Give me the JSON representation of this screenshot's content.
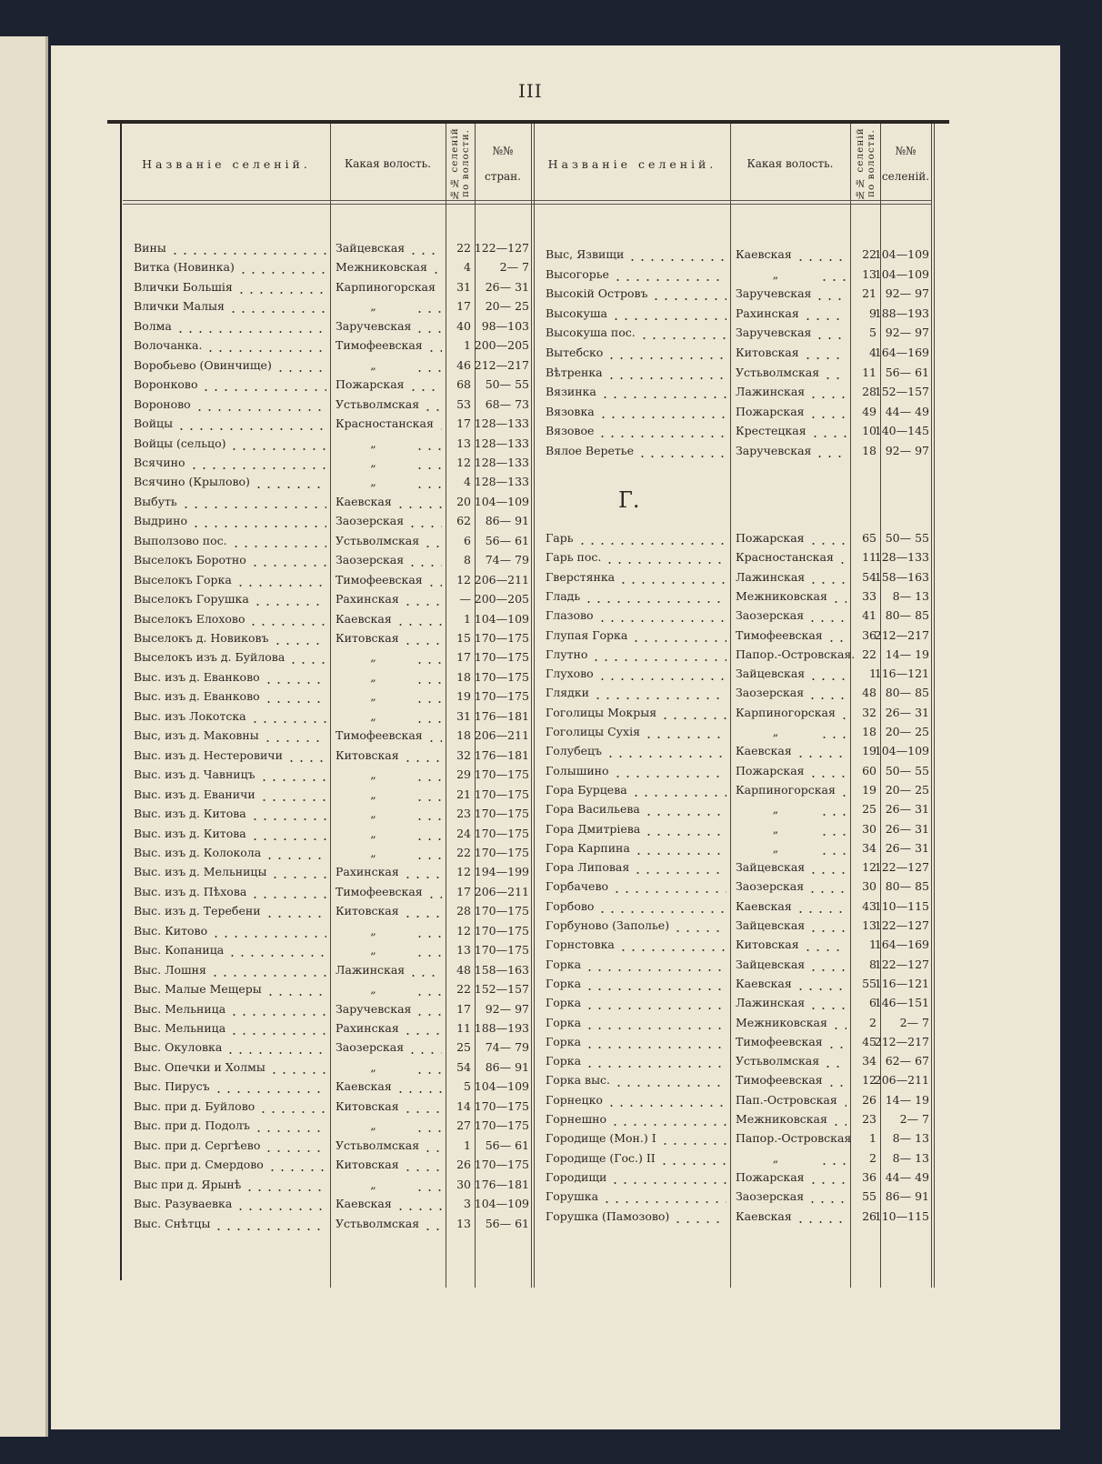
{
  "page_number": "III",
  "headers": {
    "name": "Названіе селеній.",
    "volost": "Какая волость.",
    "num_in_volost": "№№ селеній по волости.",
    "pages_left": "№№ стран.",
    "pages_right": "№№ селеній."
  },
  "section_letter": "Г.",
  "left_rows": [
    [
      "Вины",
      "Зайцевская",
      "22",
      "122—127"
    ],
    [
      "Витка (Новинка)",
      "Межниковская",
      "4",
      "2— 7"
    ],
    [
      "Влички Большія",
      "Карпиногорская",
      "31",
      "26— 31"
    ],
    [
      "Влички Малыя",
      "„",
      "17",
      "20— 25"
    ],
    [
      "Волма",
      "Заручевская",
      "40",
      "98—103"
    ],
    [
      "Волочанка.",
      "Тимофеевская",
      "1",
      "200—205"
    ],
    [
      "Воробьево (Овинчище)",
      "„",
      "46",
      "212—217"
    ],
    [
      "Воронково",
      "Пожарская",
      "68",
      "50— 55"
    ],
    [
      "Вороново",
      "Устьволмская",
      "53",
      "68— 73"
    ],
    [
      "Войцы",
      "Красностанская",
      "17",
      "128—133"
    ],
    [
      "Войцы (сельцо)",
      "„",
      "13",
      "128—133"
    ],
    [
      "Всячино",
      "„",
      "12",
      "128—133"
    ],
    [
      "Всячино (Крылово)",
      "„",
      "4",
      "128—133"
    ],
    [
      "Выбуть",
      "Каевская",
      "20",
      "104—109"
    ],
    [
      "Выдрино",
      "Заозерская",
      "62",
      "86— 91"
    ],
    [
      "Выползово пос.",
      "Устьволмская",
      "6",
      "56— 61"
    ],
    [
      "Выселокъ Боротно",
      "Заозерская",
      "8",
      "74— 79"
    ],
    [
      "Выселокъ Горка",
      "Тимофеевская",
      "12",
      "206—211"
    ],
    [
      "Выселокъ Горушка",
      "Рахинская",
      "—",
      "200—205"
    ],
    [
      "Выселокъ Елохово",
      "Каевская",
      "1",
      "104—109"
    ],
    [
      "Выселокъ д. Новиковъ",
      "Китовская",
      "15",
      "170—175"
    ],
    [
      "Выселокъ изъ д. Буйлова",
      "„",
      "17",
      "170—175"
    ],
    [
      "Выс. изъ д. Еванково",
      "„",
      "18",
      "170—175"
    ],
    [
      "Выс. изъ д. Еванково",
      "„",
      "19",
      "170—175"
    ],
    [
      "Выс. изъ Локотска",
      "„",
      "31",
      "176—181"
    ],
    [
      "Выс, изъ д. Маковны",
      "Тимофеевская",
      "18",
      "206—211"
    ],
    [
      "Выс. изъ д. Нестеровичи",
      "Китовская",
      "32",
      "176—181"
    ],
    [
      "Выс. изъ д. Чавницъ",
      "„",
      "29",
      "170—175"
    ],
    [
      "Выс. изъ д. Еваничи",
      "„",
      "21",
      "170—175"
    ],
    [
      "Выс. изъ д. Китова",
      "„",
      "23",
      "170—175"
    ],
    [
      "Выс. изъ д. Китова",
      "„",
      "24",
      "170—175"
    ],
    [
      "Выс. изъ д. Колокола",
      "„",
      "22",
      "170—175"
    ],
    [
      "Выс. изъ д. Мельницы",
      "Рахинская",
      "12",
      "194—199"
    ],
    [
      "Выс. изъ д. Пѣхова",
      "Тимофеевская",
      "17",
      "206—211"
    ],
    [
      "Выс. изъ д. Теребени",
      "Китовская",
      "28",
      "170—175"
    ],
    [
      "Выс. Китово",
      "„",
      "12",
      "170—175"
    ],
    [
      "Выс. Копаница",
      "„",
      "13",
      "170—175"
    ],
    [
      "Выс. Лошня",
      "Лажинская",
      "48",
      "158—163"
    ],
    [
      "Выс. Малые Мещеры",
      "„",
      "22",
      "152—157"
    ],
    [
      "Выс. Мельница",
      "Заручевская",
      "17",
      "92— 97"
    ],
    [
      "Выс. Мельница",
      "Рахинская",
      "11",
      "188—193"
    ],
    [
      "Выс. Окуловка",
      "Заозерская",
      "25",
      "74— 79"
    ],
    [
      "Выс. Опечки и Холмы",
      "„",
      "54",
      "86— 91"
    ],
    [
      "Выс. Пирусъ",
      "Каевская",
      "5",
      "104—109"
    ],
    [
      "Выс. при д. Буйлово",
      "Китовская",
      "14",
      "170—175"
    ],
    [
      "Выс. при д. Подолъ",
      "„",
      "27",
      "170—175"
    ],
    [
      "Выс. при д. Сергѣево",
      "Устьволмская",
      "1",
      "56— 61"
    ],
    [
      "Выс. при д. Смердово",
      "Китовская",
      "26",
      "170—175"
    ],
    [
      "Выс при д. Ярынѣ",
      "„",
      "30",
      "176—181"
    ],
    [
      "Выс. Разуваевка",
      "Каевская",
      "3",
      "104—109"
    ],
    [
      "Выс. Снѣтцы",
      "Устьволмская",
      "13",
      "56— 61"
    ]
  ],
  "right_rows_v": [
    [
      "Выс, Язвищи",
      "Каевская",
      "22",
      "104—109"
    ],
    [
      "Высогорье",
      "„",
      "13",
      "104—109"
    ],
    [
      "Высокій Островъ",
      "Заручевская",
      "21",
      "92— 97"
    ],
    [
      "Высокуша",
      "Рахинская",
      "9",
      "188—193"
    ],
    [
      "Высокуша пос.",
      "Заручевская",
      "5",
      "92— 97"
    ],
    [
      "Вытебско",
      "Китовская",
      "4",
      "164—169"
    ],
    [
      "Вѣтренка",
      "Устьволмская",
      "11",
      "56— 61"
    ],
    [
      "Вязинка",
      "Лажинская",
      "28",
      "152—157"
    ],
    [
      "Вязовка",
      "Пожарская",
      "49",
      "44— 49"
    ],
    [
      "Вязовое",
      "Крестецкая",
      "10",
      "140—145"
    ],
    [
      "Вялое Веретье",
      "Заручевская",
      "18",
      "92— 97"
    ]
  ],
  "right_rows_g": [
    [
      "Гарь",
      "Пожарская",
      "65",
      "50— 55"
    ],
    [
      "Гарь пос.",
      "Красностанская",
      "11",
      "128—133"
    ],
    [
      "Гверстянка",
      "Лажинская",
      "54",
      "158—163"
    ],
    [
      "Гладь",
      "Межниковская",
      "33",
      "8— 13"
    ],
    [
      "Глазово",
      "Заозерская",
      "41",
      "80— 85"
    ],
    [
      "Глупая Горка",
      "Тимофеевская",
      "36",
      "212—217"
    ],
    [
      "Глутно",
      "Папор.-Островская.",
      "22",
      "14— 19"
    ],
    [
      "Глухово",
      "Зайцевская",
      "1",
      "116—121"
    ],
    [
      "Глядки",
      "Заозерская",
      "48",
      "80— 85"
    ],
    [
      "Гоголицы Мокрыя",
      "Карпиногорская",
      "32",
      "26— 31"
    ],
    [
      "Гоголицы Сухія",
      "„",
      "18",
      "20— 25"
    ],
    [
      "Голубецъ",
      "Каевская",
      "19",
      "104—109"
    ],
    [
      "Голышино",
      "Пожарская",
      "60",
      "50— 55"
    ],
    [
      "Гора Бурцева",
      "Карпиногорская",
      "19",
      "20— 25"
    ],
    [
      "Гора Васильева",
      "„",
      "25",
      "26— 31"
    ],
    [
      "Гора Дмитріева",
      "„",
      "30",
      "26— 31"
    ],
    [
      "Гора Карпина",
      "„",
      "34",
      "26— 31"
    ],
    [
      "Гора Липовая",
      "Зайцевская",
      "12",
      "122—127"
    ],
    [
      "Горбачево",
      "Заозерская",
      "30",
      "80— 85"
    ],
    [
      "Горбово",
      "Каевская",
      "43",
      "110—115"
    ],
    [
      "Горбуново (Заполье)",
      "Зайцевская",
      "13",
      "122—127"
    ],
    [
      "Горнстовка",
      "Китовская",
      "1",
      "164—169"
    ],
    [
      "Горка",
      "Зайцевская",
      "8",
      "122—127"
    ],
    [
      "Горка",
      "Каевская",
      "55",
      "116—121"
    ],
    [
      "Горка",
      "Лажинская",
      "6",
      "146—151"
    ],
    [
      "Горка",
      "Межниковская",
      "2",
      "2— 7"
    ],
    [
      "Горка",
      "Тимофеевская",
      "45",
      "212—217"
    ],
    [
      "Горка",
      "Устьволмская",
      "34",
      "62— 67"
    ],
    [
      "Горка выс.",
      "Тимофеевская",
      "12",
      "206—211"
    ],
    [
      "Горнецко",
      "Пап.-Островская",
      "26",
      "14— 19"
    ],
    [
      "Горнешно",
      "Межниковская",
      "23",
      "2— 7"
    ],
    [
      "Городище (Мон.) I",
      "Папор.-Островская",
      "1",
      "8— 13"
    ],
    [
      "Городище (Гос.) II",
      "„",
      "2",
      "8— 13"
    ],
    [
      "Городищи",
      "Пожарская",
      "36",
      "44— 49"
    ],
    [
      "Горушка",
      "Заозерская",
      "55",
      "86— 91"
    ],
    [
      "Горушка (Памозово)",
      "Каевская",
      "26",
      "110—115"
    ]
  ]
}
